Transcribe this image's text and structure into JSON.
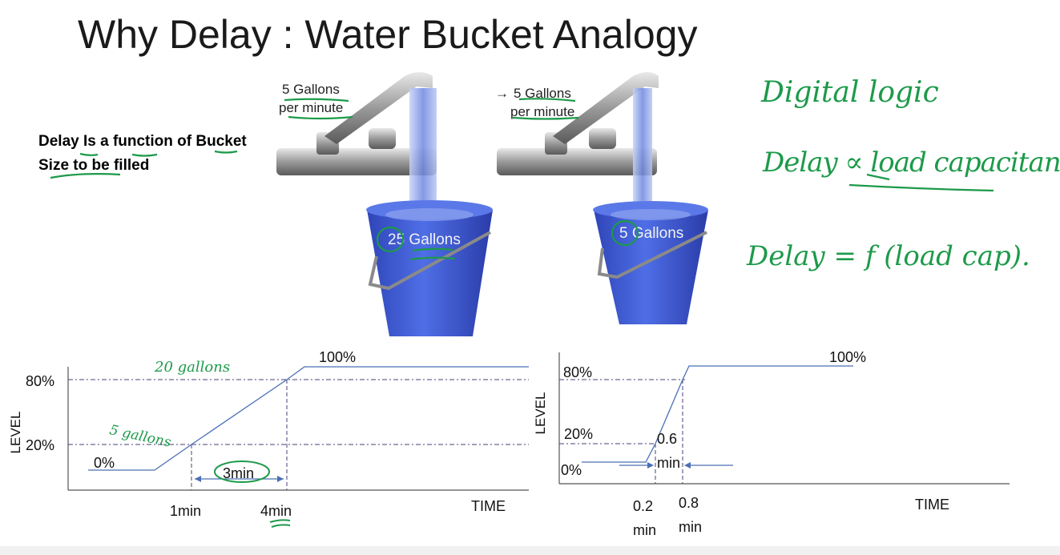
{
  "slide": {
    "title": "Why Delay : Water Bucket Analogy",
    "note_line1": "Delay Is a function of Bucket",
    "note_line2": "Size to be filled"
  },
  "left_faucet": {
    "flow_line1": "5 Gallons",
    "flow_line2": "per minute",
    "bucket_label": "25 Gallons"
  },
  "right_faucet": {
    "arrow": "→",
    "flow_line1": "5 Gallons",
    "flow_line2": "per minute",
    "bucket_label": "5 Gallons"
  },
  "handwriting": {
    "line1": "Digital logic",
    "line2": "Delay ∝ load capacitance",
    "line3": "Delay = f (load cap).",
    "left_20": "20 gallons",
    "left_5": "5 gallons"
  },
  "colors": {
    "bucket": "#3b5bd6",
    "plot_line": "#4a6fb5",
    "annotation": "#1d9a4a",
    "title": "#1a1a1a"
  },
  "chart_data": [
    {
      "type": "line",
      "ylabel": "LEVEL",
      "xlabel": "TIME",
      "y_ticks": [
        "80%",
        "20%"
      ],
      "points": [
        {
          "x": 0,
          "label": "0%",
          "level": 0
        },
        {
          "x": 0.7,
          "level": 0
        },
        {
          "x": 1,
          "level": 20
        },
        {
          "x": 4,
          "level": 80
        },
        {
          "x": 4.2,
          "level": 100,
          "label": "100%"
        },
        {
          "x": 7.5,
          "level": 100
        }
      ],
      "x_marks": [
        "1min",
        "4min"
      ],
      "interval_label": "3min"
    },
    {
      "type": "line",
      "ylabel": "LEVEL",
      "xlabel": "TIME",
      "y_ticks": [
        "80%",
        "20%"
      ],
      "points": [
        {
          "x": 0,
          "label": "0%",
          "level": 0
        },
        {
          "x": 0.2,
          "level": 0
        },
        {
          "x": 0.8,
          "level": 80
        },
        {
          "x": 0.85,
          "level": 100,
          "label": "100%"
        }
      ],
      "x_marks": [
        "0.2 min",
        "0.8 min"
      ],
      "interval_label_line1": "0.6",
      "interval_label_line2": "min"
    }
  ]
}
